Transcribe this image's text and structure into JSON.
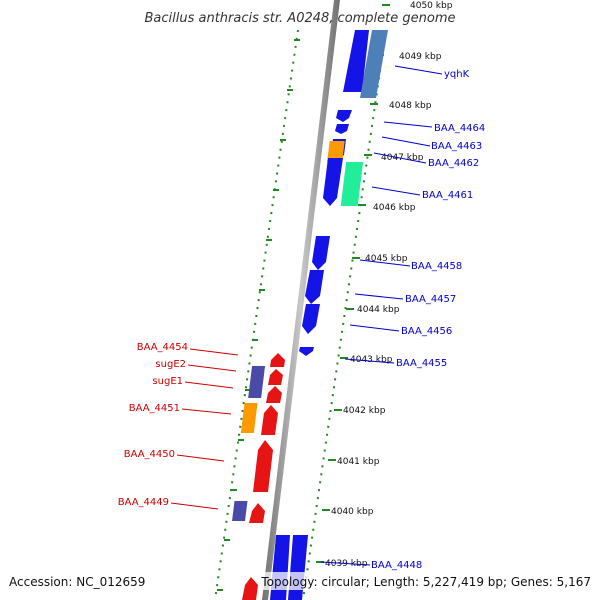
{
  "title": "Bacillus anthracis str. A0248, complete genome",
  "footer": {
    "accession": "Accession: NC_012659",
    "stats": "Topology: circular; Length: 5,227,419 bp; Genes: 5,167"
  },
  "kbp_ticks": [
    "4050 kbp",
    "4049 kbp",
    "4048 kbp",
    "4047 kbp",
    "4046 kbp",
    "4045 kbp",
    "4044 kbp",
    "4043 kbp",
    "4042 kbp",
    "4041 kbp",
    "4040 kbp",
    "4039 kbp"
  ],
  "gene_labels_right": [
    "yqhK",
    "BAA_4464",
    "BAA_4463",
    "BAA_4462",
    "BAA_4461",
    "BAA_4458",
    "BAA_4457",
    "BAA_4456",
    "BAA_4455",
    "BAA_4448"
  ],
  "gene_labels_left": [
    "BAA_4454",
    "sugE2",
    "sugE1",
    "BAA_4451",
    "BAA_4450",
    "BAA_4449"
  ],
  "colors": {
    "forward": "#1414e6",
    "reverse": "#e61414",
    "rna": "#4a4aa8",
    "orange": "#ff9900",
    "teal": "#22ee99",
    "steel": "#4d7fb8",
    "backbone": "#808080",
    "blue_label": "#0000cc",
    "red_label": "#cc0000",
    "dots": "#228822"
  }
}
